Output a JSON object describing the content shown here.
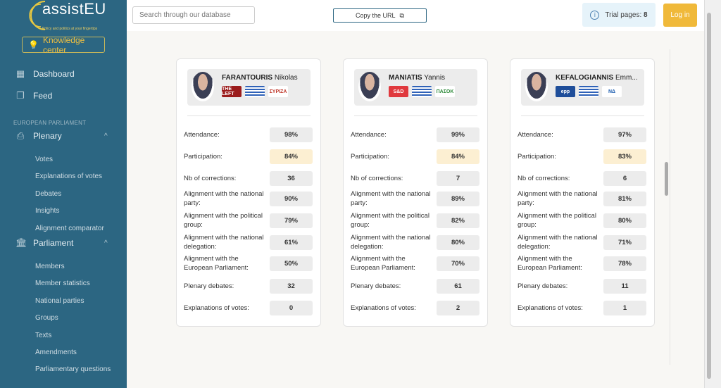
{
  "sidebar": {
    "logo": {
      "name": "assistEU",
      "tagline": "Policy and politics at your fingertips"
    },
    "knowledge_center": "Knowledge center",
    "dashboard": "Dashboard",
    "feed": "Feed",
    "section": "EUROPEAN PARLIAMENT",
    "plenary": "Plenary",
    "plenary_items": [
      "Votes",
      "Explanations of votes",
      "Debates",
      "Insights",
      "Alignment comparator"
    ],
    "parliament": "Parliament",
    "parliament_items": [
      "Members",
      "Member statistics",
      "National parties",
      "Groups",
      "Texts",
      "Amendments",
      "Parliamentary questions"
    ]
  },
  "topbar": {
    "search_placeholder": "Search through our database",
    "copy_url": "Copy the URL",
    "trial_label": "Trial pages:",
    "trial_count": "8",
    "login": "Log in"
  },
  "labels": [
    "Attendance:",
    "Participation:",
    "Nb of corrections:",
    "Alignment with the national party:",
    "Alignment with the political group:",
    "Alignment with the national delegation:",
    "Alignment with the European Parliament:",
    "Plenary debates:",
    "Explanations of votes:"
  ],
  "members": [
    {
      "surname": "FARANTOURIS",
      "first": "Nikolas",
      "group": "THE LEFT",
      "group_color": "#9b1c1c",
      "party": "ΣΥΡΙΖΑ",
      "party_color": "#c0392b",
      "values": [
        "98%",
        "84%",
        "36",
        "90%",
        "79%",
        "61%",
        "50%",
        "32",
        "0"
      ]
    },
    {
      "surname": "MANIATIS",
      "first": "Yannis",
      "group": "S&D",
      "group_color": "#e0393e",
      "party": "ΠΑΣΟΚ",
      "party_color": "#2e8b3a",
      "values": [
        "99%",
        "84%",
        "7",
        "89%",
        "82%",
        "80%",
        "70%",
        "61",
        "2"
      ]
    },
    {
      "surname": "KEFALOGIANNIS",
      "first": "Emm...",
      "group": "epp",
      "group_color": "#1f4e9a",
      "party": "ΝΔ",
      "party_color": "#1f5fb0",
      "values": [
        "97%",
        "83%",
        "6",
        "81%",
        "80%",
        "71%",
        "78%",
        "11",
        "1"
      ]
    }
  ]
}
